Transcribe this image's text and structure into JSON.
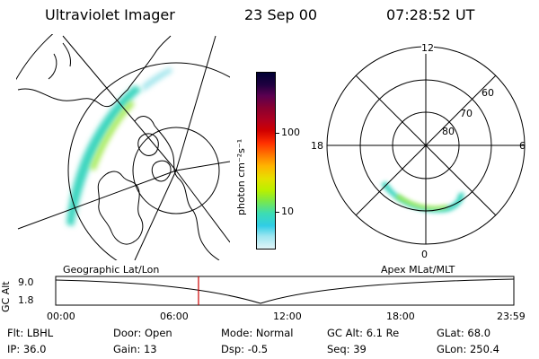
{
  "header": {
    "title": "Ultraviolet Imager",
    "date": "23 Sep 00",
    "time": "07:28:52 UT"
  },
  "geo_map": {
    "label": "Geographic Lat/Lon"
  },
  "colorbar": {
    "unit_label": "photon cm⁻²s⁻¹",
    "ticks": [
      "100",
      "10"
    ],
    "colors": [
      "#000033",
      "#200040",
      "#5a0050",
      "#8a0030",
      "#b00020",
      "#d00000",
      "#ff3000",
      "#ff7a00",
      "#ffb400",
      "#e6e000",
      "#b8f000",
      "#7ae84a",
      "#3cdcb4",
      "#30cde6",
      "#9ee6f0",
      "#e0f4f8"
    ]
  },
  "polar_plot": {
    "label": "Apex MLat/MLT",
    "mlt_labels": {
      "top": "12",
      "left": "18",
      "right": "6",
      "bottom": "0"
    },
    "lat_labels": [
      "60",
      "70",
      "80"
    ]
  },
  "timeline": {
    "y_axis_title": "GC Alt",
    "y_ticks": [
      "9.0",
      "1.8"
    ],
    "x_ticks": [
      "00:00",
      "06:00",
      "12:00",
      "18:00",
      "23:59"
    ],
    "current_time_fraction": 0.3117,
    "marker_color": "#cc0000"
  },
  "status": {
    "row1": [
      {
        "label": "Flt:",
        "value": "LBHL"
      },
      {
        "label": "Door:",
        "value": "Open"
      },
      {
        "label": "Mode:",
        "value": "Normal"
      },
      {
        "label": "GC Alt:",
        "value": "6.1 Re"
      },
      {
        "label": "GLat:",
        "value": "68.0"
      }
    ],
    "row2": [
      {
        "label": "IP:",
        "value": "36.0"
      },
      {
        "label": "Gain:",
        "value": "13"
      },
      {
        "label": "Dsp:",
        "value": "-0.5"
      },
      {
        "label": "Seq:",
        "value": "39"
      },
      {
        "label": "GLon:",
        "value": "250.4"
      }
    ]
  }
}
